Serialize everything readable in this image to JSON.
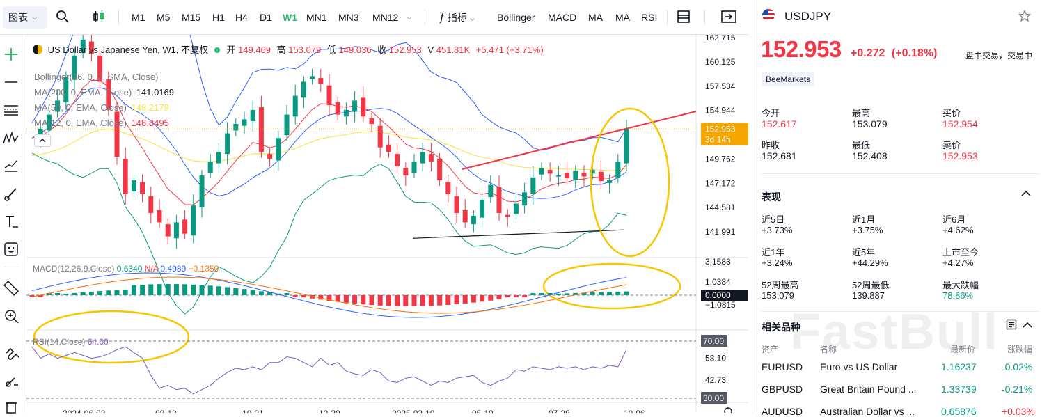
{
  "toolbar": {
    "chart_type": "图表",
    "intervals": [
      "M1",
      "M5",
      "M15",
      "H1",
      "H4",
      "D1",
      "W1",
      "MN1",
      "MN3",
      "MN12"
    ],
    "active_interval": "W1",
    "indicators_label": "指标",
    "indicator_buttons": [
      "Bollinger",
      "MACD",
      "MA",
      "MA",
      "RSI"
    ]
  },
  "legend": {
    "title": "US Dollar vs Japanese Yen, W1, 不复权",
    "open_label": "开",
    "open": "149.469",
    "high_label": "高",
    "high": "153.079",
    "low_label": "低",
    "low": "149.036",
    "close_label": "收",
    "close": "152.953",
    "volume_label": "V",
    "volume": "451.81K",
    "change": "+5.471 (+3.71%)",
    "bollinger": "Bollinger(26, 0, 2, SMA, Close)",
    "ma200_label": "MA(200, 0, EMA, Close)",
    "ma200_value": "141.0169",
    "ma50_label": "MA(50, 0, EMA, Close)",
    "ma50_value": "148.2179",
    "ma12_label": "MA(12, 0, EMA, Close)",
    "ma12_value": "148.8495",
    "macd_label": "MACD(12,26,9,Close)",
    "macd_hist": "0.6340",
    "macd_na": "N/A",
    "macd_macd": "0.4989",
    "macd_signal": "−0.1350",
    "rsi_label": "RSI(14,Close)",
    "rsi_value": "64.00"
  },
  "price_axis": {
    "main": [
      "162.715",
      "160.125",
      "157.534",
      "154.944",
      "149.762",
      "147.172",
      "144.581",
      "141.991"
    ],
    "current_price": "152.953",
    "countdown": "3d 14h",
    "macd": [
      "3.1583",
      "1.0384",
      "0.0000",
      "−1.0815"
    ],
    "rsi": [
      "70.00",
      "58.10",
      "42.73",
      "30.00"
    ]
  },
  "time_axis": [
    "2024-06-03",
    "08-12",
    "10-21",
    "12-30",
    "2025-03-10",
    "05-19",
    "07-28",
    "10-06"
  ],
  "colors": {
    "up": "#089981",
    "down": "#f23645",
    "accent": "#2dbd6e",
    "annotation": "#f7c600"
  },
  "quote": {
    "symbol": "USDJPY",
    "price": "152.953",
    "change": "+0.272",
    "change_pct": "(+0.18%)",
    "status": "盘中交易，交易中",
    "source": "BeeMarkets",
    "stats": [
      {
        "label": "今开",
        "value": "152.617",
        "color": "red"
      },
      {
        "label": "最高",
        "value": "153.079",
        "color": "dark"
      },
      {
        "label": "买价",
        "value": "152.954",
        "color": "red"
      },
      {
        "label": "昨收",
        "value": "152.681",
        "color": "dark"
      },
      {
        "label": "最低",
        "value": "152.408",
        "color": "dark"
      },
      {
        "label": "卖价",
        "value": "152.953",
        "color": "red"
      }
    ],
    "performance_title": "表现",
    "performance": [
      {
        "label": "近5日",
        "value": "+3.73%",
        "color": "dark"
      },
      {
        "label": "近1月",
        "value": "+3.75%",
        "color": "dark"
      },
      {
        "label": "近6月",
        "value": "+4.62%",
        "color": "dark"
      },
      {
        "label": "近1年",
        "value": "+3.24%",
        "color": "dark"
      },
      {
        "label": "近5年",
        "value": "+44.29%",
        "color": "dark"
      },
      {
        "label": "上市至今",
        "value": "+4.27%",
        "color": "dark"
      },
      {
        "label": "52周最高",
        "value": "153.079",
        "color": "dark"
      },
      {
        "label": "52周最低",
        "value": "139.887",
        "color": "dark"
      },
      {
        "label": "最大跌幅",
        "value": "78.86%",
        "color": "green"
      }
    ],
    "related_title": "相关品种",
    "related_headers": [
      "资产",
      "名称",
      "最新价",
      "涨跌幅"
    ],
    "related": [
      {
        "symbol": "EURUSD",
        "name": "Euro vs US Dollar",
        "price": "1.16237",
        "change": "-0.02%",
        "up": false
      },
      {
        "symbol": "GBPUSD",
        "name": "Great Britain Pound ...",
        "price": "1.33739",
        "change": "-0.21%",
        "up": false
      },
      {
        "symbol": "AUDUSD",
        "name": "Australian Dollar vs ...",
        "price": "0.65876",
        "change": "+0.03%",
        "up": true
      }
    ],
    "watermark": "FastBull"
  }
}
